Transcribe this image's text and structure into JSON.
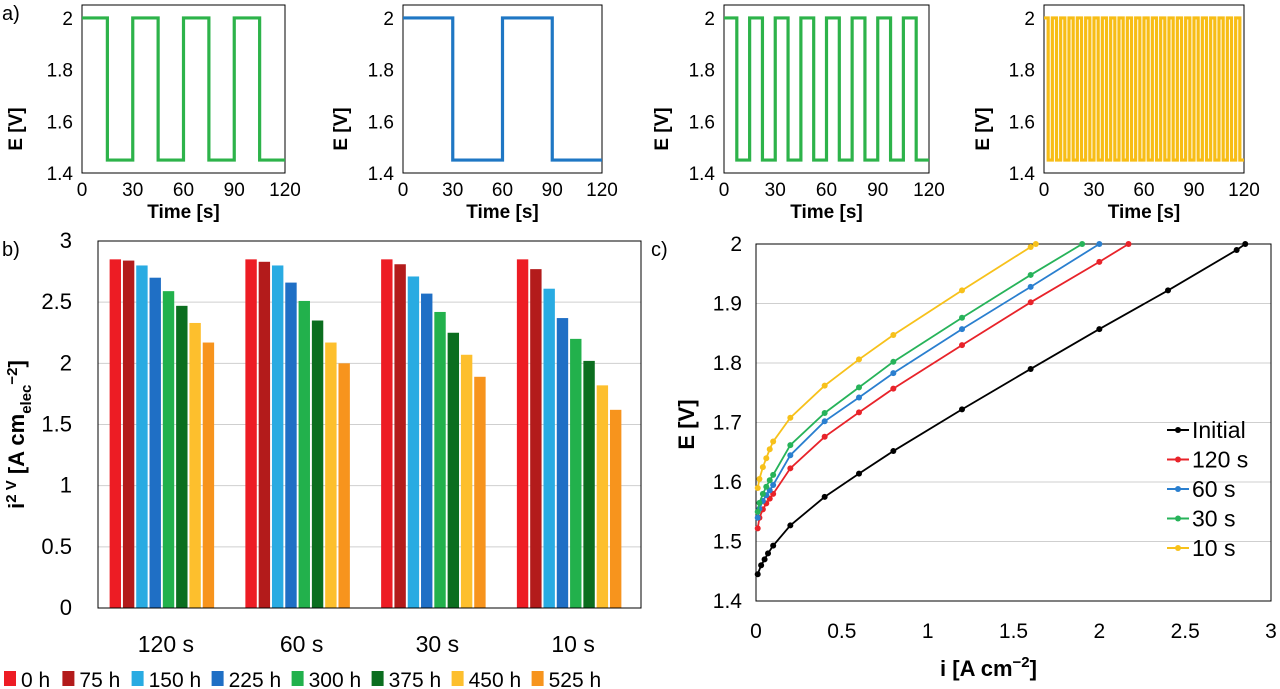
{
  "panel_labels": {
    "a": "a)",
    "b": "b)",
    "c": "c)"
  },
  "chart_data": [
    {
      "type": "line",
      "panel": "a",
      "xlabel": "Time [s]",
      "ylabel": "E [V]",
      "xlim": [
        0,
        120
      ],
      "ylim": [
        1.4,
        2.05
      ],
      "xticks": [
        "0",
        "30",
        "60",
        "90",
        "120"
      ],
      "yticks": [
        "1.4",
        "1.6",
        "1.8",
        "2"
      ],
      "color": "#2db34a",
      "series": [
        {
          "low": 1.45,
          "high": 2.0,
          "half_period": 15,
          "start_high": true
        }
      ]
    },
    {
      "type": "line",
      "panel": "a",
      "xlabel": "Time [s]",
      "ylabel": "E [V]",
      "xlim": [
        0,
        120
      ],
      "ylim": [
        1.4,
        2.05
      ],
      "xticks": [
        "0",
        "30",
        "60",
        "90",
        "120"
      ],
      "yticks": [
        "1.4",
        "1.6",
        "1.8",
        "2"
      ],
      "color": "#1f77c4",
      "series": [
        {
          "low": 1.45,
          "high": 2.0,
          "half_period": 30,
          "start_high": true
        }
      ]
    },
    {
      "type": "line",
      "panel": "a",
      "xlabel": "Time [s]",
      "ylabel": "E [V]",
      "xlim": [
        0,
        120
      ],
      "ylim": [
        1.4,
        2.05
      ],
      "xticks": [
        "0",
        "30",
        "60",
        "90",
        "120"
      ],
      "yticks": [
        "1.4",
        "1.6",
        "1.8",
        "2"
      ],
      "color": "#2db34a",
      "series": [
        {
          "low": 1.45,
          "high": 2.0,
          "half_period": 7.5,
          "start_high": true
        }
      ]
    },
    {
      "type": "line",
      "panel": "a",
      "xlabel": "Time [s]",
      "ylabel": "E [V]",
      "xlim": [
        0,
        120
      ],
      "ylim": [
        1.4,
        2.05
      ],
      "xticks": [
        "0",
        "30",
        "60",
        "90",
        "120"
      ],
      "yticks": [
        "1.4",
        "1.6",
        "1.8",
        "2"
      ],
      "color": "#f7bd16",
      "series": [
        {
          "low": 1.45,
          "high": 2.0,
          "half_period": 2.5,
          "start_high": true
        }
      ]
    },
    {
      "type": "bar",
      "panel": "b",
      "ylabel": "i",
      "ylabel_sup": "2 V",
      "ylabel_main": "[A cm",
      "ylabel_sub": "elec",
      "ylabel_sup2": "−2",
      "ylabel_end": "]",
      "ylim": [
        0,
        3
      ],
      "yticks": [
        "0",
        "0.5",
        "1",
        "1.5",
        "2",
        "2.5",
        "3"
      ],
      "grid": true,
      "categories": [
        "120 s",
        "60 s",
        "30 s",
        "10 s"
      ],
      "series": [
        {
          "name": "0 h",
          "color": "#ed1c24",
          "values": [
            2.85,
            2.85,
            2.85,
            2.85
          ]
        },
        {
          "name": "75 h",
          "color": "#b31b1b",
          "values": [
            2.84,
            2.83,
            2.81,
            2.77
          ]
        },
        {
          "name": "150 h",
          "color": "#29abe2",
          "values": [
            2.8,
            2.8,
            2.71,
            2.61
          ]
        },
        {
          "name": "225 h",
          "color": "#1f6fc5",
          "values": [
            2.7,
            2.66,
            2.57,
            2.37
          ]
        },
        {
          "name": "300 h",
          "color": "#22b14c",
          "values": [
            2.59,
            2.51,
            2.42,
            2.2
          ]
        },
        {
          "name": "375 h",
          "color": "#0b6e1f",
          "values": [
            2.47,
            2.35,
            2.25,
            2.02
          ]
        },
        {
          "name": "450 h",
          "color": "#fdbf2d",
          "values": [
            2.33,
            2.17,
            2.07,
            1.82
          ]
        },
        {
          "name": "525 h",
          "color": "#f7941d",
          "values": [
            2.17,
            2.0,
            1.89,
            1.62
          ]
        }
      ],
      "legend": "bottom"
    },
    {
      "type": "line",
      "panel": "c",
      "xlabel": "i [A cm",
      "xlabel_sup": "−2",
      "xlabel_end": "]",
      "ylabel": "E [V]",
      "xlim": [
        0,
        3
      ],
      "ylim": [
        1.4,
        2.0
      ],
      "xticks": [
        "0",
        "0.5",
        "1",
        "1.5",
        "2",
        "2.5",
        "3"
      ],
      "yticks": [
        "1.4",
        "1.5",
        "1.6",
        "1.7",
        "1.8",
        "1.9",
        "2"
      ],
      "grid": true,
      "legend": "right",
      "series": [
        {
          "name": "Initial",
          "color": "#000000",
          "points": [
            [
              0.01,
              1.445
            ],
            [
              0.03,
              1.46
            ],
            [
              0.05,
              1.47
            ],
            [
              0.07,
              1.48
            ],
            [
              0.1,
              1.493
            ],
            [
              0.2,
              1.527
            ],
            [
              0.4,
              1.575
            ],
            [
              0.6,
              1.614
            ],
            [
              0.8,
              1.652
            ],
            [
              1.2,
              1.722
            ],
            [
              1.6,
              1.79
            ],
            [
              2.0,
              1.857
            ],
            [
              2.4,
              1.922
            ],
            [
              2.8,
              1.99
            ],
            [
              2.85,
              2.0
            ]
          ]
        },
        {
          "name": "120 s",
          "color": "#e8232a",
          "points": [
            [
              0.01,
              1.522
            ],
            [
              0.02,
              1.54
            ],
            [
              0.04,
              1.554
            ],
            [
              0.06,
              1.564
            ],
            [
              0.08,
              1.572
            ],
            [
              0.1,
              1.58
            ],
            [
              0.2,
              1.623
            ],
            [
              0.4,
              1.676
            ],
            [
              0.6,
              1.717
            ],
            [
              0.8,
              1.757
            ],
            [
              1.2,
              1.83
            ],
            [
              1.6,
              1.902
            ],
            [
              2.0,
              1.97
            ],
            [
              2.17,
              2.0
            ]
          ]
        },
        {
          "name": "60 s",
          "color": "#2a7fcf",
          "points": [
            [
              0.01,
              1.54
            ],
            [
              0.02,
              1.555
            ],
            [
              0.04,
              1.568
            ],
            [
              0.06,
              1.578
            ],
            [
              0.08,
              1.586
            ],
            [
              0.1,
              1.595
            ],
            [
              0.2,
              1.645
            ],
            [
              0.4,
              1.702
            ],
            [
              0.6,
              1.742
            ],
            [
              0.8,
              1.783
            ],
            [
              1.2,
              1.857
            ],
            [
              1.6,
              1.928
            ],
            [
              2.0,
              2.0
            ]
          ]
        },
        {
          "name": "30 s",
          "color": "#27b35a",
          "points": [
            [
              0.01,
              1.55
            ],
            [
              0.02,
              1.565
            ],
            [
              0.04,
              1.58
            ],
            [
              0.06,
              1.592
            ],
            [
              0.08,
              1.603
            ],
            [
              0.1,
              1.612
            ],
            [
              0.2,
              1.662
            ],
            [
              0.4,
              1.716
            ],
            [
              0.6,
              1.759
            ],
            [
              0.8,
              1.802
            ],
            [
              1.2,
              1.876
            ],
            [
              1.6,
              1.948
            ],
            [
              1.9,
              2.0
            ]
          ]
        },
        {
          "name": "10 s",
          "color": "#f7c11b",
          "points": [
            [
              0.01,
              1.59
            ],
            [
              0.02,
              1.605
            ],
            [
              0.04,
              1.625
            ],
            [
              0.06,
              1.64
            ],
            [
              0.08,
              1.655
            ],
            [
              0.1,
              1.668
            ],
            [
              0.2,
              1.708
            ],
            [
              0.4,
              1.762
            ],
            [
              0.6,
              1.806
            ],
            [
              0.8,
              1.847
            ],
            [
              1.2,
              1.922
            ],
            [
              1.6,
              1.995
            ],
            [
              1.63,
              2.0
            ]
          ]
        }
      ]
    }
  ]
}
